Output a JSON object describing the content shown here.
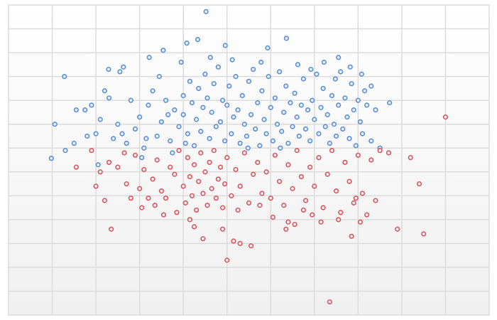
{
  "chart_data": {
    "type": "scatter",
    "title": "",
    "xlabel": "",
    "ylabel": "",
    "xlim": [
      0,
      11
    ],
    "ylim": [
      0,
      13
    ],
    "grid": true,
    "legend": "none",
    "colors": {
      "series_a": "#5b8fd6",
      "series_b": "#d9575b",
      "grid": "#dcdcdc"
    },
    "series": [
      {
        "color": "#5b8fd6",
        "points": [
          [
            4.52,
            12.72
          ],
          [
            0.98,
            6.57
          ],
          [
            1.06,
            8.0
          ],
          [
            1.28,
            10.0
          ],
          [
            4.33,
            11.55
          ],
          [
            3.54,
            11.1
          ],
          [
            3.22,
            10.8
          ],
          [
            2.29,
            10.3
          ],
          [
            2.63,
            10.4
          ],
          [
            2.55,
            10.2
          ],
          [
            6.36,
            11.6
          ],
          [
            5.93,
            11.2
          ],
          [
            7.55,
            10.8
          ],
          [
            8.08,
            10.1
          ],
          [
            8.72,
            8.9
          ],
          [
            8.3,
            9.6
          ],
          [
            4.08,
            11.4
          ],
          [
            4.96,
            11.3
          ],
          [
            1.55,
            8.6
          ],
          [
            1.75,
            8.6
          ],
          [
            1.9,
            8.8
          ],
          [
            2.1,
            8.2
          ],
          [
            2.3,
            9.1
          ],
          [
            2.0,
            7.6
          ],
          [
            1.5,
            7.2
          ],
          [
            1.8,
            7.5
          ],
          [
            2.4,
            7.4
          ],
          [
            2.6,
            7.6
          ],
          [
            2.7,
            7.2
          ],
          [
            2.9,
            7.8
          ],
          [
            3.0,
            8.3
          ],
          [
            3.1,
            7.0
          ],
          [
            3.2,
            8.8
          ],
          [
            3.3,
            9.4
          ],
          [
            3.4,
            7.5
          ],
          [
            3.5,
            8.1
          ],
          [
            3.6,
            9.0
          ],
          [
            3.7,
            7.3
          ],
          [
            3.8,
            8.6
          ],
          [
            3.9,
            7.9
          ],
          [
            4.0,
            9.2
          ],
          [
            4.0,
            8.4
          ],
          [
            4.1,
            7.6
          ],
          [
            4.15,
            9.8
          ],
          [
            4.2,
            8.9
          ],
          [
            4.25,
            7.1
          ],
          [
            4.3,
            8.2
          ],
          [
            4.35,
            9.5
          ],
          [
            4.4,
            7.7
          ],
          [
            4.45,
            8.7
          ],
          [
            4.5,
            10.1
          ],
          [
            4.55,
            9.1
          ],
          [
            4.6,
            7.4
          ],
          [
            4.65,
            8.5
          ],
          [
            4.7,
            9.7
          ],
          [
            4.75,
            7.9
          ],
          [
            4.8,
            10.4
          ],
          [
            4.85,
            8.1
          ],
          [
            4.9,
            9.0
          ],
          [
            4.95,
            7.3
          ],
          [
            5.0,
            8.8
          ],
          [
            5.05,
            9.6
          ],
          [
            5.1,
            7.6
          ],
          [
            5.15,
            8.3
          ],
          [
            5.2,
            10.0
          ],
          [
            5.25,
            8.6
          ],
          [
            5.3,
            7.2
          ],
          [
            5.35,
            9.2
          ],
          [
            5.4,
            8.0
          ],
          [
            5.45,
            7.5
          ],
          [
            5.5,
            9.8
          ],
          [
            5.55,
            8.4
          ],
          [
            5.6,
            10.3
          ],
          [
            5.65,
            7.8
          ],
          [
            5.7,
            8.9
          ],
          [
            5.75,
            7.1
          ],
          [
            5.8,
            9.4
          ],
          [
            5.85,
            8.2
          ],
          [
            5.9,
            7.6
          ],
          [
            5.95,
            10.0
          ],
          [
            6.0,
            8.7
          ],
          [
            6.05,
            7.3
          ],
          [
            6.1,
            9.1
          ],
          [
            6.15,
            8.0
          ],
          [
            6.2,
            10.2
          ],
          [
            6.25,
            7.7
          ],
          [
            6.3,
            8.5
          ],
          [
            6.35,
            9.6
          ],
          [
            6.4,
            7.2
          ],
          [
            6.45,
            8.9
          ],
          [
            6.5,
            7.9
          ],
          [
            6.55,
            9.3
          ],
          [
            6.6,
            8.3
          ],
          [
            6.65,
            7.5
          ],
          [
            6.7,
            8.8
          ],
          [
            6.75,
            9.9
          ],
          [
            6.8,
            7.8
          ],
          [
            6.85,
            8.6
          ],
          [
            6.9,
            7.3
          ],
          [
            6.95,
            9.0
          ],
          [
            7.0,
            8.2
          ],
          [
            7.05,
            10.1
          ],
          [
            7.1,
            7.6
          ],
          [
            7.15,
            8.7
          ],
          [
            7.2,
            9.5
          ],
          [
            7.25,
            7.9
          ],
          [
            7.3,
            8.4
          ],
          [
            7.35,
            7.2
          ],
          [
            7.4,
            9.2
          ],
          [
            7.45,
            8.0
          ],
          [
            7.5,
            7.5
          ],
          [
            7.55,
            8.8
          ],
          [
            7.6,
            10.2
          ],
          [
            7.65,
            7.8
          ],
          [
            7.7,
            9.1
          ],
          [
            7.75,
            8.3
          ],
          [
            7.8,
            7.4
          ],
          [
            7.85,
            9.7
          ],
          [
            7.9,
            8.6
          ],
          [
            7.95,
            7.1
          ],
          [
            8.0,
            9.0
          ],
          [
            8.05,
            8.1
          ],
          [
            8.1,
            7.6
          ],
          [
            8.2,
            8.8
          ],
          [
            8.3,
            7.3
          ],
          [
            8.4,
            8.6
          ],
          [
            8.5,
            7.0
          ],
          [
            2.2,
            9.4
          ],
          [
            2.5,
            8.0
          ],
          [
            2.8,
            9.0
          ],
          [
            3.15,
            7.4
          ],
          [
            3.45,
            10.0
          ],
          [
            3.65,
            8.4
          ],
          [
            3.95,
            10.6
          ],
          [
            4.05,
            7.2
          ],
          [
            4.62,
            10.8
          ],
          [
            5.12,
            10.7
          ],
          [
            5.48,
            7.0
          ],
          [
            5.78,
            10.6
          ],
          [
            6.22,
            7.0
          ],
          [
            6.62,
            10.5
          ],
          [
            6.92,
            10.3
          ],
          [
            7.22,
            10.6
          ],
          [
            7.48,
            9.9
          ],
          [
            7.82,
            10.4
          ],
          [
            8.15,
            9.4
          ],
          [
            3.05,
            6.6
          ],
          [
            1.3,
            6.9
          ],
          [
            2.05,
            6.3
          ],
          [
            3.75,
            6.8
          ]
        ]
      },
      {
        "color": "#d9575b",
        "points": [
          [
            10.0,
            8.3
          ],
          [
            7.35,
            0.55
          ],
          [
            9.2,
            6.6
          ],
          [
            9.4,
            5.5
          ],
          [
            9.5,
            3.4
          ],
          [
            8.9,
            3.6
          ],
          [
            2.35,
            3.6
          ],
          [
            5.0,
            2.3
          ],
          [
            5.3,
            3.0
          ],
          [
            6.35,
            3.6
          ],
          [
            6.4,
            3.9
          ],
          [
            4.9,
            3.6
          ],
          [
            1.9,
            6.9
          ],
          [
            2.1,
            6.0
          ],
          [
            2.3,
            6.4
          ],
          [
            2.5,
            6.2
          ],
          [
            2.7,
            5.5
          ],
          [
            2.8,
            4.9
          ],
          [
            2.9,
            6.7
          ],
          [
            3.0,
            5.3
          ],
          [
            3.1,
            6.1
          ],
          [
            3.2,
            4.9
          ],
          [
            3.3,
            5.7
          ],
          [
            3.4,
            6.5
          ],
          [
            3.5,
            5.2
          ],
          [
            3.6,
            4.9
          ],
          [
            3.7,
            6.2
          ],
          [
            3.8,
            5.9
          ],
          [
            3.9,
            6.9
          ],
          [
            4.0,
            5.4
          ],
          [
            4.05,
            4.7
          ],
          [
            4.1,
            6.6
          ],
          [
            4.15,
            5.8
          ],
          [
            4.2,
            5.0
          ],
          [
            4.25,
            6.3
          ],
          [
            4.3,
            4.4
          ],
          [
            4.35,
            5.6
          ],
          [
            4.4,
            6.8
          ],
          [
            4.45,
            5.1
          ],
          [
            4.5,
            6.0
          ],
          [
            4.55,
            4.6
          ],
          [
            4.6,
            6.4
          ],
          [
            4.65,
            5.3
          ],
          [
            4.7,
            6.9
          ],
          [
            4.75,
            4.9
          ],
          [
            4.8,
            5.7
          ],
          [
            4.85,
            6.2
          ],
          [
            4.9,
            4.5
          ],
          [
            4.95,
            5.5
          ],
          [
            5.0,
            6.6
          ],
          [
            5.1,
            5.0
          ],
          [
            5.2,
            6.1
          ],
          [
            5.3,
            5.4
          ],
          [
            5.4,
            6.8
          ],
          [
            5.5,
            4.7
          ],
          [
            5.6,
            5.9
          ],
          [
            5.7,
            6.4
          ],
          [
            5.8,
            5.1
          ],
          [
            5.9,
            6.0
          ],
          [
            6.0,
            4.9
          ],
          [
            6.1,
            6.7
          ],
          [
            6.2,
            5.6
          ],
          [
            6.3,
            4.6
          ],
          [
            6.4,
            6.3
          ],
          [
            6.5,
            5.3
          ],
          [
            6.6,
            6.9
          ],
          [
            6.7,
            5.8
          ],
          [
            6.8,
            4.8
          ],
          [
            6.9,
            6.2
          ],
          [
            7.0,
            5.4
          ],
          [
            7.1,
            6.6
          ],
          [
            7.2,
            4.5
          ],
          [
            7.3,
            5.9
          ],
          [
            7.4,
            6.9
          ],
          [
            7.5,
            5.2
          ],
          [
            7.6,
            4.3
          ],
          [
            7.7,
            6.4
          ],
          [
            7.8,
            5.6
          ],
          [
            7.9,
            4.7
          ],
          [
            8.0,
            6.7
          ],
          [
            8.1,
            5.1
          ],
          [
            8.2,
            4.2
          ],
          [
            8.3,
            6.5
          ],
          [
            8.4,
            4.8
          ],
          [
            8.5,
            6.9
          ],
          [
            8.7,
            6.8
          ],
          [
            2.0,
            5.4
          ],
          [
            2.2,
            4.8
          ],
          [
            3.05,
            4.5
          ],
          [
            3.55,
            4.2
          ],
          [
            3.85,
            4.3
          ],
          [
            4.15,
            4.0
          ],
          [
            4.45,
            3.2
          ],
          [
            5.55,
            2.9
          ],
          [
            5.15,
            3.1
          ],
          [
            6.55,
            3.8
          ],
          [
            6.95,
            4.2
          ],
          [
            7.15,
            3.9
          ],
          [
            7.55,
            4.0
          ],
          [
            7.85,
            3.3
          ],
          [
            4.25,
            3.7
          ],
          [
            5.25,
            4.4
          ],
          [
            5.75,
            4.6
          ],
          [
            6.05,
            4.1
          ],
          [
            6.75,
            4.4
          ],
          [
            7.95,
            4.9
          ],
          [
            8.05,
            3.9
          ],
          [
            3.35,
            4.6
          ],
          [
            2.65,
            6.8
          ],
          [
            1.55,
            6.2
          ]
        ]
      }
    ]
  }
}
